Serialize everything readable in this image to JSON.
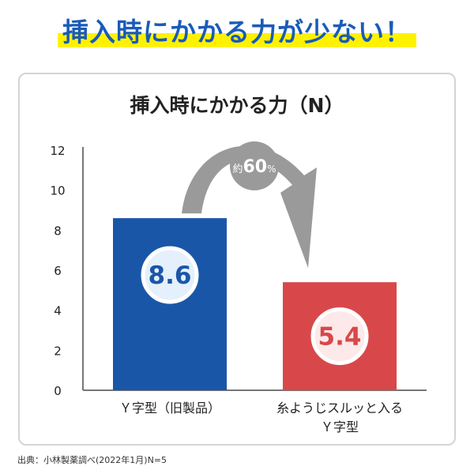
{
  "headline": "挿入時にかかる力が少ない！",
  "source_note": "出典：小林製薬調べ(2022年1月)N=5",
  "colors": {
    "headline_text": "#1a5bb8",
    "headline_highlight": "#fff200",
    "bar_old": "#1a56a8",
    "bar_new": "#d8484a",
    "bar_old_circle": "#e4f0fb",
    "bar_new_circle": "#fde9e9",
    "arrow": "#9a9a9a",
    "axis": "#777777",
    "text": "#222222"
  },
  "arrow": {
    "label_prefix": "約",
    "label_value": "60",
    "label_suffix": "%"
  },
  "chart_data": {
    "type": "bar",
    "title": "挿入時にかかる力（N）",
    "categories": [
      [
        "Ｙ字型（旧製品）"
      ],
      [
        "糸ようじスルッと入る",
        "Ｙ字型"
      ]
    ],
    "values": [
      8.6,
      5.4
    ],
    "value_labels": [
      "8.6",
      "5.4"
    ],
    "ylim": [
      0,
      12
    ],
    "yticks": [
      0,
      2,
      4,
      6,
      8,
      10,
      12
    ],
    "xlabel": "",
    "ylabel": "",
    "grid": false,
    "legend": "none"
  }
}
